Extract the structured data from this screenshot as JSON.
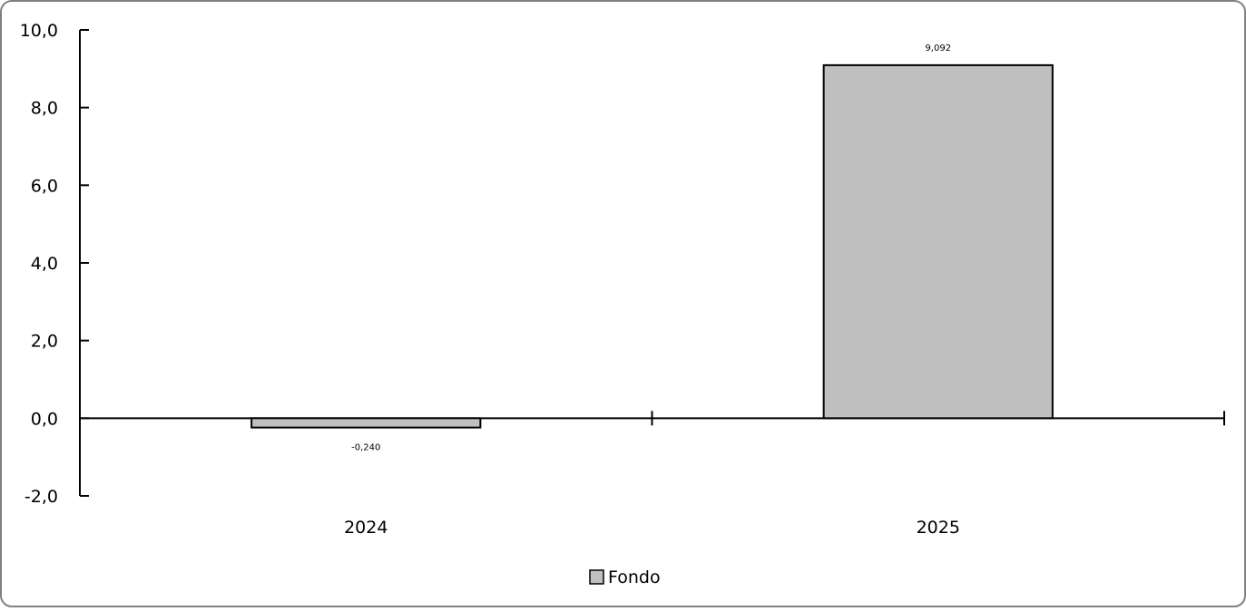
{
  "chart_data": {
    "type": "bar",
    "categories": [
      "2024",
      "2025"
    ],
    "series": [
      {
        "name": "Fondo",
        "values": [
          -0.24,
          9.092
        ],
        "data_labels": [
          "-0,240",
          "9,092"
        ],
        "color": "#c0c0c0"
      }
    ],
    "ylim": [
      -2.0,
      10.0
    ],
    "yticks": [
      -2.0,
      0.0,
      2.0,
      4.0,
      6.0,
      8.0,
      10.0
    ],
    "ytick_labels": [
      "-2,0",
      "0,0",
      "2,0",
      "4,0",
      "6,0",
      "8,0",
      "10,0"
    ],
    "grid": false,
    "legend_position": "bottom",
    "bar_outline_color": "#000000",
    "frame_color": "#808080"
  }
}
